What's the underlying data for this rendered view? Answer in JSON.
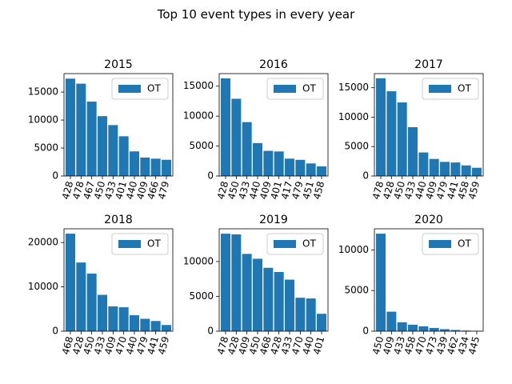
{
  "figure": {
    "title": "Top 10 event types in every year"
  },
  "style": {
    "bar_color": "#1f77b4",
    "axis_color": "#000000",
    "legend_border": "#cccccc"
  },
  "chart_data": [
    {
      "type": "bar",
      "title": "2015",
      "categories": [
        "428",
        "478",
        "467",
        "450",
        "433",
        "401",
        "440",
        "409",
        "466",
        "479"
      ],
      "series": [
        {
          "name": "OT",
          "values": [
            17400,
            16500,
            13300,
            10700,
            9100,
            7100,
            4400,
            3300,
            3100,
            2900
          ]
        }
      ],
      "ylim": [
        0,
        18300
      ],
      "yticks": [
        0,
        5000,
        10000,
        15000
      ],
      "legend": "top-right",
      "grid": false
    },
    {
      "type": "bar",
      "title": "2016",
      "categories": [
        "428",
        "450",
        "433",
        "440",
        "409",
        "401",
        "417",
        "479",
        "451",
        "458"
      ],
      "series": [
        {
          "name": "OT",
          "values": [
            16300,
            12900,
            9000,
            5500,
            4200,
            4100,
            2900,
            2700,
            2100,
            1600
          ]
        }
      ],
      "ylim": [
        0,
        17100
      ],
      "yticks": [
        0,
        5000,
        10000,
        15000
      ],
      "legend": "top-right",
      "grid": false
    },
    {
      "type": "bar",
      "title": "2017",
      "categories": [
        "478",
        "428",
        "450",
        "433",
        "440",
        "409",
        "479",
        "441",
        "458",
        "459"
      ],
      "series": [
        {
          "name": "OT",
          "values": [
            16600,
            14400,
            12500,
            8300,
            4000,
            2900,
            2400,
            2300,
            1800,
            1400
          ]
        }
      ],
      "ylim": [
        0,
        17400
      ],
      "yticks": [
        0,
        5000,
        10000,
        15000
      ],
      "legend": "top-right",
      "grid": false
    },
    {
      "type": "bar",
      "title": "2018",
      "categories": [
        "468",
        "428",
        "450",
        "433",
        "409",
        "470",
        "440",
        "479",
        "441",
        "459"
      ],
      "series": [
        {
          "name": "OT",
          "values": [
            22000,
            15500,
            13000,
            8200,
            5600,
            5400,
            3600,
            2800,
            2300,
            1400
          ]
        }
      ],
      "ylim": [
        0,
        23100
      ],
      "yticks": [
        0,
        10000,
        20000
      ],
      "legend": "top-right",
      "grid": false
    },
    {
      "type": "bar",
      "title": "2019",
      "categories": [
        "478",
        "428",
        "409",
        "450",
        "468",
        "428",
        "433",
        "470",
        "440",
        "401"
      ],
      "series": [
        {
          "name": "OT",
          "values": [
            14000,
            13900,
            11100,
            10400,
            9100,
            8500,
            7400,
            4800,
            4700,
            2500
          ]
        }
      ],
      "ylim": [
        0,
        14700
      ],
      "yticks": [
        0,
        5000,
        10000
      ],
      "legend": "top-right",
      "grid": false
    },
    {
      "type": "bar",
      "title": "2020",
      "categories": [
        "450",
        "409",
        "433",
        "458",
        "470",
        "473",
        "439",
        "462",
        "434",
        "445"
      ],
      "series": [
        {
          "name": "OT",
          "values": [
            12000,
            2400,
            1100,
            800,
            600,
            400,
            250,
            150,
            80,
            50
          ]
        }
      ],
      "ylim": [
        0,
        12600
      ],
      "yticks": [
        0,
        5000,
        10000
      ],
      "legend": "top-right",
      "grid": false
    }
  ]
}
